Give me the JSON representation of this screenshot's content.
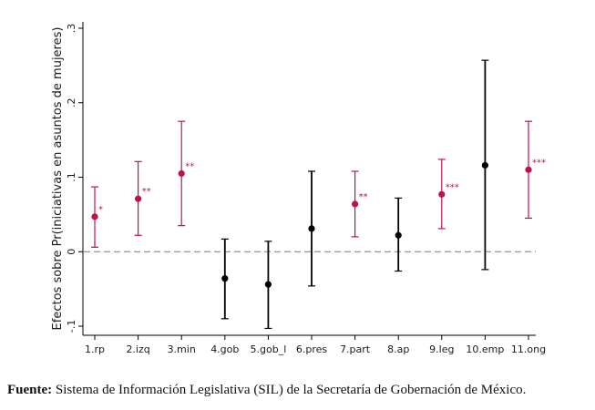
{
  "chart_data": {
    "type": "scatter",
    "title": "",
    "xlabel": "",
    "ylabel": "Efectos sobre Pr(iniciativas en asuntos de mujeres)",
    "ylim": [
      -0.1,
      0.3
    ],
    "yticks": [
      {
        "value": -0.1,
        "label": "-.1"
      },
      {
        "value": 0,
        "label": "0"
      },
      {
        "value": 0.1,
        "label": ".1"
      },
      {
        "value": 0.2,
        "label": ".2"
      },
      {
        "value": 0.3,
        "label": ".3"
      }
    ],
    "reference_line": 0,
    "grid": false,
    "colors": {
      "significant": "#c0124a",
      "not_significant": "#000000",
      "reference": "#7a7a7a"
    },
    "points": [
      {
        "category": "1.rp",
        "estimate": 0.047,
        "lower": 0.006,
        "upper": 0.087,
        "stars": "*",
        "significant": true
      },
      {
        "category": "2.izq",
        "estimate": 0.071,
        "lower": 0.022,
        "upper": 0.121,
        "stars": "**",
        "significant": true
      },
      {
        "category": "3.min",
        "estimate": 0.105,
        "lower": 0.035,
        "upper": 0.175,
        "stars": "**",
        "significant": true
      },
      {
        "category": "4.gob",
        "estimate": -0.036,
        "lower": -0.09,
        "upper": 0.017,
        "stars": "",
        "significant": false
      },
      {
        "category": "5.gob_l",
        "estimate": -0.044,
        "lower": -0.103,
        "upper": 0.014,
        "stars": "",
        "significant": false
      },
      {
        "category": "6.pres",
        "estimate": 0.031,
        "lower": -0.046,
        "upper": 0.108,
        "stars": "",
        "significant": false
      },
      {
        "category": "7.part",
        "estimate": 0.064,
        "lower": 0.02,
        "upper": 0.108,
        "stars": "**",
        "significant": true
      },
      {
        "category": "8.ap",
        "estimate": 0.022,
        "lower": -0.026,
        "upper": 0.072,
        "stars": "",
        "significant": false
      },
      {
        "category": "9.leg",
        "estimate": 0.077,
        "lower": 0.031,
        "upper": 0.124,
        "stars": "***",
        "significant": true
      },
      {
        "category": "10.emp",
        "estimate": 0.116,
        "lower": -0.024,
        "upper": 0.257,
        "stars": "",
        "significant": false
      },
      {
        "category": "11.ong",
        "estimate": 0.11,
        "lower": 0.045,
        "upper": 0.175,
        "stars": "***",
        "significant": true
      }
    ]
  },
  "source": {
    "label": "Fuente:",
    "text": "Sistema de Información Legislativa (SIL) de la Secretaría de Gobernación de México."
  }
}
